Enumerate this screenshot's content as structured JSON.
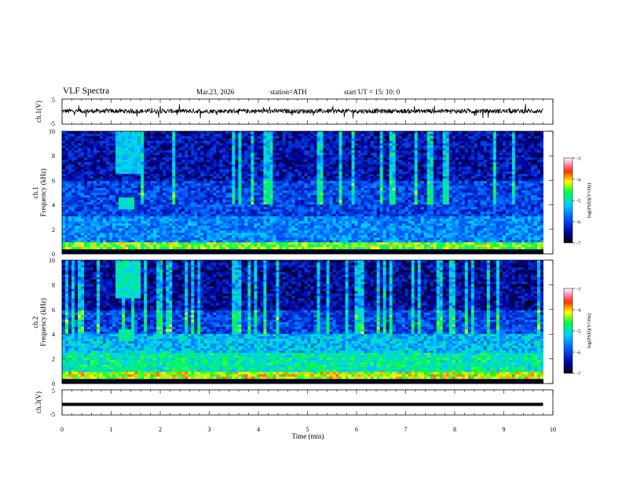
{
  "header": {
    "title": "VLF  Spectra",
    "date": "Mar.23, 2026",
    "station": "station=ATH",
    "start": "start  UT  =   15: 10: 0"
  },
  "chart_data": [
    {
      "id": "ch1",
      "type": "line",
      "ylabel": "ch.1(V)",
      "yticks": [
        "5",
        "-5"
      ],
      "ylim": [
        -5,
        5
      ],
      "xlim": [
        0,
        10
      ],
      "description_values": {
        "mean": 0.2,
        "noise_amplitude": 1.0,
        "data_end_min": 9.8
      }
    },
    {
      "id": "ch1-spectrogram",
      "type": "heatmap",
      "ylabel": "ch.1",
      "ylabel2": "Frequency  (kHz)",
      "yticks": [
        "0",
        "2",
        "4",
        "6",
        "8",
        "10"
      ],
      "ylim": [
        0,
        10
      ],
      "xlim": [
        0,
        10
      ],
      "colorbar": {
        "label": "log(PSD)(V²/Hz)",
        "ticks": [
          "-3",
          "-4",
          "-5",
          "-6",
          "-7"
        ],
        "range": [
          -7,
          -3
        ]
      },
      "features": [
        {
          "t_start": 1.1,
          "t_end": 1.45,
          "f_low": 3.7,
          "f_high": 4.6,
          "logPSD": -5.0
        },
        {
          "t_start": 1.05,
          "t_end": 1.6,
          "f_low": 6.5,
          "f_high": 10,
          "logPSD": -5.2
        }
      ]
    },
    {
      "id": "ch2-spectrogram",
      "type": "heatmap",
      "ylabel": "ch.2",
      "ylabel2": "Frequency  (kHz)",
      "yticks": [
        "0",
        "2",
        "4",
        "6",
        "8",
        "10"
      ],
      "ylim": [
        0,
        10
      ],
      "xlim": [
        0,
        10
      ],
      "colorbar": {
        "label": "log(PSD)(V²/Hz)",
        "ticks": [
          "-3",
          "-4",
          "-5",
          "-6",
          "-7"
        ],
        "range": [
          -7,
          -3
        ]
      },
      "features": [
        {
          "t_start": 1.1,
          "t_end": 1.45,
          "f_low": 3.5,
          "f_high": 4.5,
          "logPSD": -4.9
        },
        {
          "t_start": 1.05,
          "t_end": 1.6,
          "f_low": 7.0,
          "f_high": 10,
          "logPSD": -5.0
        }
      ]
    },
    {
      "id": "ch3",
      "type": "line",
      "ylabel": "ch.3(V)",
      "yticks": [
        "5",
        "-5"
      ],
      "ylim": [
        -5,
        5
      ],
      "xlim": [
        0,
        10
      ],
      "xlabel": "Time  (min)",
      "xticks": [
        "0",
        "1",
        "2",
        "3",
        "4",
        "5",
        "6",
        "7",
        "8",
        "9",
        "10"
      ],
      "description_values": {
        "mean": -0.8,
        "data_end_min": 9.8
      }
    }
  ]
}
